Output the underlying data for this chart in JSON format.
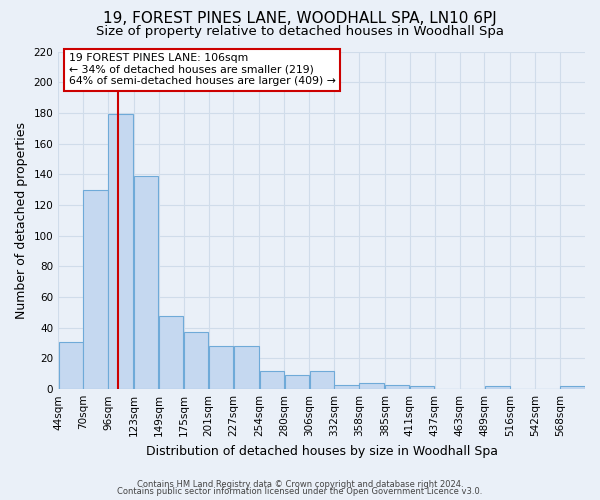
{
  "title": "19, FOREST PINES LANE, WOODHALL SPA, LN10 6PJ",
  "subtitle": "Size of property relative to detached houses in Woodhall Spa",
  "xlabel": "Distribution of detached houses by size in Woodhall Spa",
  "ylabel": "Number of detached properties",
  "bar_values": [
    31,
    130,
    179,
    139,
    48,
    37,
    28,
    28,
    12,
    9,
    12,
    3,
    4,
    3,
    2,
    0,
    0,
    2,
    0,
    0,
    2
  ],
  "bin_edges": [
    44,
    70,
    96,
    123,
    149,
    175,
    201,
    227,
    254,
    280,
    306,
    332,
    358,
    385,
    411,
    437,
    463,
    489,
    516,
    542,
    568,
    594
  ],
  "bin_labels": [
    "44sqm",
    "70sqm",
    "96sqm",
    "123sqm",
    "149sqm",
    "175sqm",
    "201sqm",
    "227sqm",
    "254sqm",
    "280sqm",
    "306sqm",
    "332sqm",
    "358sqm",
    "385sqm",
    "411sqm",
    "437sqm",
    "463sqm",
    "489sqm",
    "516sqm",
    "542sqm",
    "568sqm"
  ],
  "bar_color": "#c5d8f0",
  "bar_edge_color": "#6faad8",
  "property_line_x": 106,
  "property_line_color": "#cc0000",
  "ylim": [
    0,
    220
  ],
  "yticks": [
    0,
    20,
    40,
    60,
    80,
    100,
    120,
    140,
    160,
    180,
    200,
    220
  ],
  "annotation_title": "19 FOREST PINES LANE: 106sqm",
  "annotation_line1": "← 34% of detached houses are smaller (219)",
  "annotation_line2": "64% of semi-detached houses are larger (409) →",
  "footer1": "Contains HM Land Registry data © Crown copyright and database right 2024.",
  "footer2": "Contains public sector information licensed under the Open Government Licence v3.0.",
  "background_color": "#eaf0f8",
  "grid_color": "#d0dcea",
  "title_fontsize": 11,
  "subtitle_fontsize": 9.5,
  "axis_label_fontsize": 9,
  "tick_fontsize": 7.5
}
